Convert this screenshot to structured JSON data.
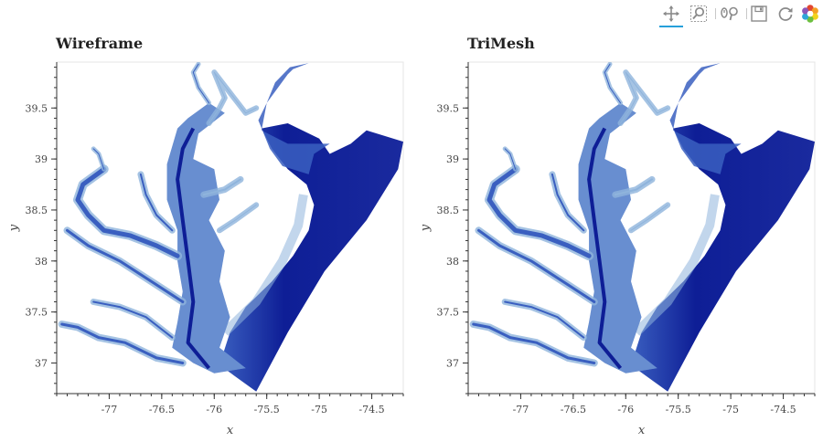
{
  "toolbar": {
    "tools": [
      {
        "name": "pan-tool",
        "icon": "pan-icon",
        "active": true
      },
      {
        "name": "box-zoom-tool",
        "icon": "box-zoom-icon",
        "active": false
      },
      {
        "name": "wheel-zoom-tool",
        "icon": "wheel-zoom-icon",
        "active": false
      },
      {
        "name": "save-tool",
        "icon": "save-icon",
        "active": false
      },
      {
        "name": "reset-tool",
        "icon": "reset-icon",
        "active": false
      },
      {
        "name": "bokeh-logo",
        "icon": "bokeh-logo-icon",
        "active": false
      }
    ],
    "accent_color": "#26a0da"
  },
  "chart_data": [
    {
      "type": "heatmap",
      "title": "Wireframe",
      "xlabel": "x",
      "ylabel": "y",
      "xlim": [
        -77.5,
        -74.2
      ],
      "ylim": [
        36.7,
        39.95
      ],
      "x_ticks": [
        -77,
        -76.5,
        -76,
        -75.5,
        -75,
        -74.5
      ],
      "x_tick_labels": [
        "-77",
        "-76.5",
        "-76",
        "-75.5",
        "-75",
        "-74.5"
      ],
      "y_ticks": [
        37,
        37.5,
        38,
        38.5,
        39,
        39.5
      ],
      "y_tick_labels": [
        "37",
        "37.5",
        "38",
        "38.5",
        "39",
        "39.5"
      ],
      "grid": false,
      "colors": {
        "shallow": "#8fb4dc",
        "medium": "#3a5fc0",
        "deep": "#0e1e96"
      }
    },
    {
      "type": "heatmap",
      "title": "TriMesh",
      "xlabel": "x",
      "ylabel": "y",
      "xlim": [
        -77.5,
        -74.2
      ],
      "ylim": [
        36.7,
        39.95
      ],
      "x_ticks": [
        -77,
        -76.5,
        -76,
        -75.5,
        -75,
        -74.5
      ],
      "x_tick_labels": [
        "-77",
        "-76.5",
        "-76",
        "-75.5",
        "-75",
        "-74.5"
      ],
      "y_ticks": [
        37,
        37.5,
        38,
        38.5,
        39,
        39.5
      ],
      "y_tick_labels": [
        "37",
        "37.5",
        "38",
        "38.5",
        "39",
        "39.5"
      ],
      "grid": false,
      "colors": {
        "shallow": "#8fb4dc",
        "medium": "#3a5fc0",
        "deep": "#0e1e96"
      }
    }
  ]
}
